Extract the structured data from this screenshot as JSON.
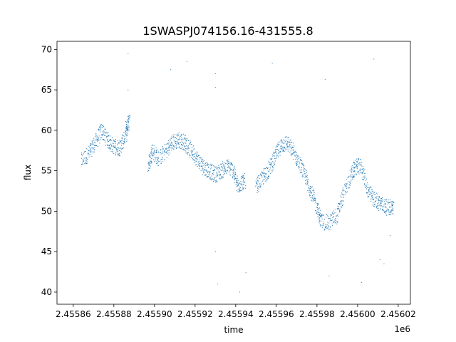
{
  "chart_data": {
    "type": "scatter",
    "title": "1SWASPJ074156.16-431555.8",
    "xlabel": "time",
    "ylabel": "flux",
    "x_offset_label": "1e6",
    "xlim": [
      2.455852,
      2.456026
    ],
    "ylim": [
      38.5,
      71.0
    ],
    "x_ticks": [
      2.45586,
      2.45588,
      2.4559,
      2.45592,
      2.45594,
      2.45596,
      2.45598,
      2.456,
      2.45602
    ],
    "x_tick_labels": [
      "2.45586",
      "2.45588",
      "2.45590",
      "2.45592",
      "2.45594",
      "2.45596",
      "2.45598",
      "2.45600",
      "2.45602"
    ],
    "y_ticks": [
      40,
      45,
      50,
      55,
      60,
      65,
      70
    ],
    "y_tick_labels": [
      "40",
      "45",
      "50",
      "55",
      "60",
      "65",
      "70"
    ],
    "grid": false,
    "marker_color": "#1f77b4",
    "trend": [
      {
        "x": 2.455864,
        "y": 56.2
      },
      {
        "x": 2.455868,
        "y": 57.2
      },
      {
        "x": 2.455871,
        "y": 58.5
      },
      {
        "x": 2.455874,
        "y": 60.0
      },
      {
        "x": 2.455877,
        "y": 58.8
      },
      {
        "x": 2.45588,
        "y": 58.0
      },
      {
        "x": 2.455883,
        "y": 57.8
      },
      {
        "x": 2.455886,
        "y": 59.5
      },
      {
        "x": 2.455887,
        "y": 61.0
      },
      {
        "x": 2.455897,
        "y": 55.5
      },
      {
        "x": 2.455899,
        "y": 57.5
      },
      {
        "x": 2.455902,
        "y": 56.5
      },
      {
        "x": 2.455906,
        "y": 57.5
      },
      {
        "x": 2.455909,
        "y": 58.5
      },
      {
        "x": 2.455912,
        "y": 58.8
      },
      {
        "x": 2.455915,
        "y": 58.5
      },
      {
        "x": 2.455918,
        "y": 57.5
      },
      {
        "x": 2.455921,
        "y": 56.5
      },
      {
        "x": 2.455924,
        "y": 55.5
      },
      {
        "x": 2.455927,
        "y": 55.0
      },
      {
        "x": 2.45593,
        "y": 54.5
      },
      {
        "x": 2.455933,
        "y": 55.0
      },
      {
        "x": 2.455936,
        "y": 55.5
      },
      {
        "x": 2.455939,
        "y": 55.0
      },
      {
        "x": 2.455941,
        "y": 53.0
      },
      {
        "x": 2.455944,
        "y": 53.8
      },
      {
        "x": 2.45595,
        "y": 53.0
      },
      {
        "x": 2.455953,
        "y": 54.0
      },
      {
        "x": 2.455956,
        "y": 55.0
      },
      {
        "x": 2.455959,
        "y": 56.5
      },
      {
        "x": 2.455962,
        "y": 58.0
      },
      {
        "x": 2.455965,
        "y": 58.5
      },
      {
        "x": 2.455968,
        "y": 57.5
      },
      {
        "x": 2.455971,
        "y": 56.0
      },
      {
        "x": 2.455974,
        "y": 54.5
      },
      {
        "x": 2.455977,
        "y": 52.5
      },
      {
        "x": 2.45598,
        "y": 50.5
      },
      {
        "x": 2.455982,
        "y": 48.8
      },
      {
        "x": 2.455986,
        "y": 48.5
      },
      {
        "x": 2.45599,
        "y": 49.5
      },
      {
        "x": 2.455993,
        "y": 52.0
      },
      {
        "x": 2.455997,
        "y": 54.5
      },
      {
        "x": 2.455999,
        "y": 55.5
      },
      {
        "x": 2.456002,
        "y": 55.5
      },
      {
        "x": 2.456005,
        "y": 52.5
      },
      {
        "x": 2.456008,
        "y": 51.5
      },
      {
        "x": 2.456011,
        "y": 51.0
      },
      {
        "x": 2.456014,
        "y": 50.5
      },
      {
        "x": 2.456017,
        "y": 50.5
      }
    ],
    "outliers": [
      {
        "x": 2.455887,
        "y": 69.5
      },
      {
        "x": 2.455887,
        "y": 65.0
      },
      {
        "x": 2.455908,
        "y": 67.5
      },
      {
        "x": 2.455916,
        "y": 68.5
      },
      {
        "x": 2.45593,
        "y": 67.0
      },
      {
        "x": 2.45593,
        "y": 65.3
      },
      {
        "x": 2.45593,
        "y": 45.0
      },
      {
        "x": 2.455931,
        "y": 41.0
      },
      {
        "x": 2.455942,
        "y": 40.0
      },
      {
        "x": 2.455945,
        "y": 42.4
      },
      {
        "x": 2.455958,
        "y": 68.3
      },
      {
        "x": 2.455984,
        "y": 66.3
      },
      {
        "x": 2.455986,
        "y": 42.0
      },
      {
        "x": 2.456002,
        "y": 41.2
      },
      {
        "x": 2.456008,
        "y": 68.8
      },
      {
        "x": 2.456011,
        "y": 44.0
      },
      {
        "x": 2.456013,
        "y": 43.5
      },
      {
        "x": 2.456016,
        "y": 47.0
      }
    ]
  }
}
